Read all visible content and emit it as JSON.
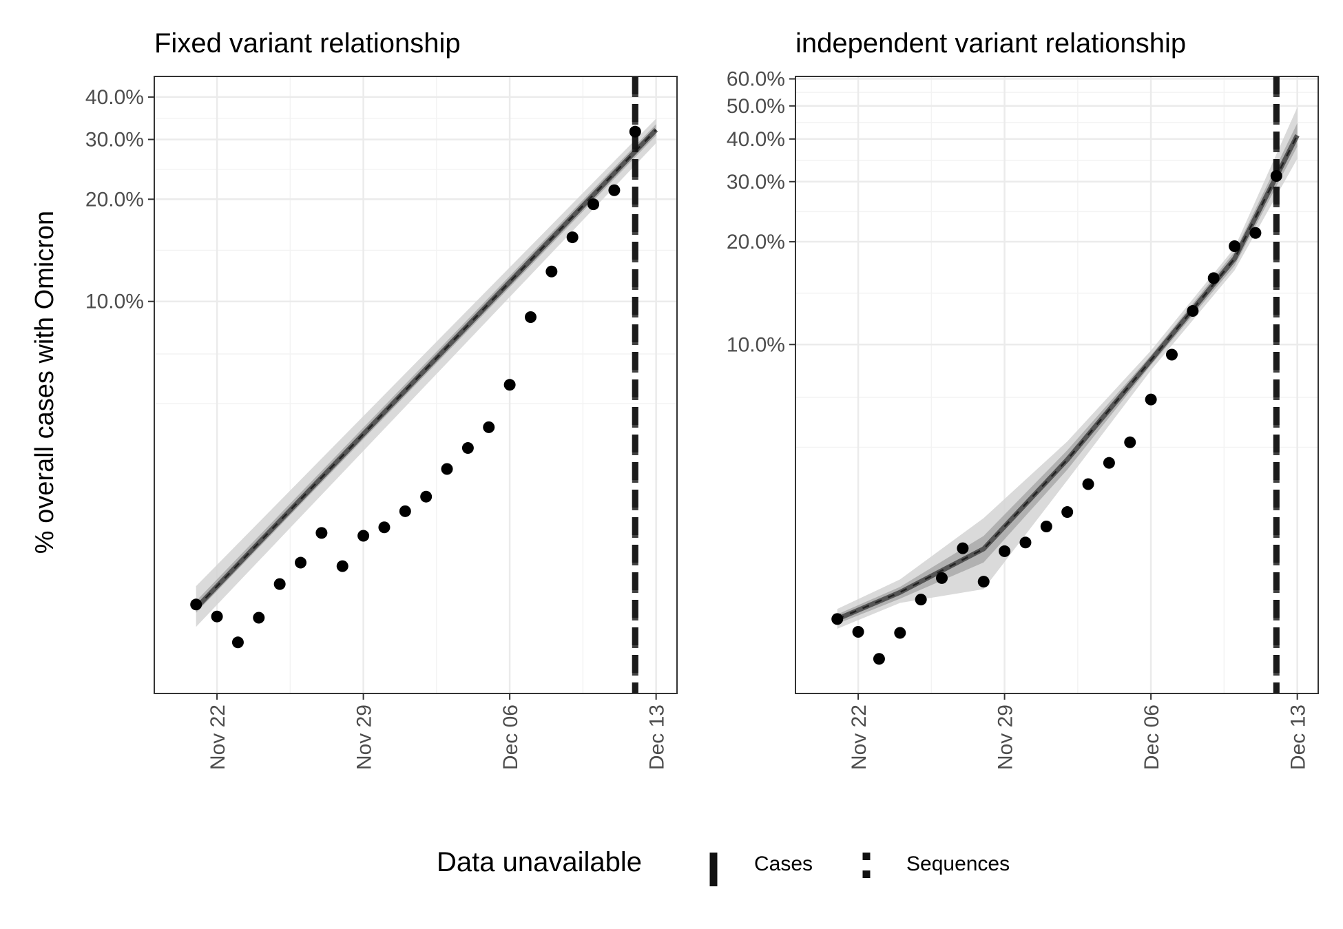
{
  "ylabel": "% overall cases with Omicron",
  "legend": {
    "title": "Data unavailable",
    "position": "bottom",
    "entries": [
      {
        "label": "Cases",
        "linetype": "solid"
      },
      {
        "label": "Sequences",
        "linetype": "dashed"
      }
    ]
  },
  "colors": {
    "points": "#000000",
    "line": "#555555",
    "ribbon_outer": "#d4d4d4",
    "ribbon_inner": "#a9a9a9",
    "grid_major": "#ebebeb",
    "grid_minor": "#f3f3f3",
    "border": "#333333"
  },
  "chart_data": [
    {
      "type": "scatter",
      "title": "Fixed variant relationship",
      "y_scale": "log",
      "ylim": [
        0.007,
        0.46
      ],
      "xlim": [
        "2021-11-19",
        "2021-12-14"
      ],
      "x_ticks": [
        {
          "date": "2021-11-22",
          "label": "Nov 22"
        },
        {
          "date": "2021-11-29",
          "label": "Nov 29"
        },
        {
          "date": "2021-12-06",
          "label": "Dec 06"
        },
        {
          "date": "2021-12-13",
          "label": "Dec 13"
        }
      ],
      "y_ticks": [
        {
          "value": 0.1,
          "label": "10.0%"
        },
        {
          "value": 0.2,
          "label": "20.0%"
        },
        {
          "value": 0.3,
          "label": "30.0%"
        },
        {
          "value": 0.4,
          "label": "40.0%"
        }
      ],
      "grid": true,
      "observed": {
        "dates": [
          "2021-11-21",
          "2021-11-22",
          "2021-11-23",
          "2021-11-24",
          "2021-11-25",
          "2021-11-26",
          "2021-11-27",
          "2021-11-28",
          "2021-11-29",
          "2021-11-30",
          "2021-12-01",
          "2021-12-02",
          "2021-12-03",
          "2021-12-04",
          "2021-12-05",
          "2021-12-06",
          "2021-12-07",
          "2021-12-08",
          "2021-12-09",
          "2021-12-10",
          "2021-12-11",
          "2021-12-12"
        ],
        "values": [
          0.0128,
          0.0118,
          0.0099,
          0.0117,
          0.0147,
          0.017,
          0.0208,
          0.0166,
          0.0204,
          0.0216,
          0.0241,
          0.0266,
          0.0321,
          0.037,
          0.0426,
          0.0568,
          0.0899,
          0.1225,
          0.1545,
          0.1933,
          0.2126,
          0.3163
        ]
      },
      "estimate": {
        "dates": [
          "2021-11-21",
          "2021-12-13"
        ],
        "median": [
          0.0125,
          0.3204
        ],
        "inner_lower": [
          0.0121,
          0.3081
        ],
        "inner_upper": [
          0.0131,
          0.333
        ],
        "outer_lower": [
          0.011,
          0.2926
        ],
        "outer_upper": [
          0.0145,
          0.3456
        ]
      },
      "data_unavailable": [
        {
          "type": "Cases",
          "date": "2021-12-12"
        },
        {
          "type": "Sequences",
          "date": "2021-12-12"
        }
      ]
    },
    {
      "type": "scatter",
      "title": "independent variant relationship",
      "y_scale": "log",
      "ylim": [
        0.0095,
        0.61
      ],
      "xlim": [
        "2021-11-19",
        "2021-12-14"
      ],
      "x_ticks": [
        {
          "date": "2021-11-22",
          "label": "Nov 22"
        },
        {
          "date": "2021-11-29",
          "label": "Nov 29"
        },
        {
          "date": "2021-12-06",
          "label": "Dec 06"
        },
        {
          "date": "2021-12-13",
          "label": "Dec 13"
        }
      ],
      "y_ticks": [
        {
          "value": 0.1,
          "label": "10.0%"
        },
        {
          "value": 0.2,
          "label": "20.0%"
        },
        {
          "value": 0.3,
          "label": "30.0%"
        },
        {
          "value": 0.4,
          "label": "40.0%"
        },
        {
          "value": 0.5,
          "label": "50.0%"
        },
        {
          "value": 0.6,
          "label": "60.0%"
        }
      ],
      "grid": true,
      "observed": {
        "dates": [
          "2021-11-21",
          "2021-11-22",
          "2021-11-23",
          "2021-11-24",
          "2021-11-25",
          "2021-11-26",
          "2021-11-27",
          "2021-11-28",
          "2021-11-29",
          "2021-11-30",
          "2021-12-01",
          "2021-12-02",
          "2021-12-03",
          "2021-12-04",
          "2021-12-05",
          "2021-12-06",
          "2021-12-07",
          "2021-12-08",
          "2021-12-09",
          "2021-12-10",
          "2021-12-11",
          "2021-12-12"
        ],
        "values": [
          0.0157,
          0.0144,
          0.012,
          0.0143,
          0.0179,
          0.0207,
          0.0253,
          0.0202,
          0.0248,
          0.0263,
          0.0293,
          0.0323,
          0.039,
          0.045,
          0.0517,
          0.069,
          0.0934,
          0.1254,
          0.1565,
          0.1941,
          0.2123,
          0.3118
        ]
      },
      "estimate": {
        "dates": [
          "2021-11-21",
          "2021-11-24",
          "2021-11-28",
          "2021-12-02",
          "2021-12-06",
          "2021-12-10",
          "2021-12-13"
        ],
        "median": [
          0.0157,
          0.0188,
          0.0252,
          0.046,
          0.09,
          0.1785,
          0.4101
        ],
        "inner_lower": [
          0.0152,
          0.018,
          0.023,
          0.043,
          0.087,
          0.17,
          0.38
        ],
        "inner_upper": [
          0.0162,
          0.0195,
          0.0275,
          0.049,
          0.093,
          0.187,
          0.445
        ],
        "outer_lower": [
          0.0147,
          0.0175,
          0.0192,
          0.04,
          0.084,
          0.165,
          0.35
        ],
        "outer_upper": [
          0.0168,
          0.0205,
          0.031,
          0.052,
          0.096,
          0.192,
          0.495
        ]
      },
      "data_unavailable": [
        {
          "type": "Cases",
          "date": "2021-12-12"
        },
        {
          "type": "Sequences",
          "date": "2021-12-12"
        }
      ]
    }
  ]
}
